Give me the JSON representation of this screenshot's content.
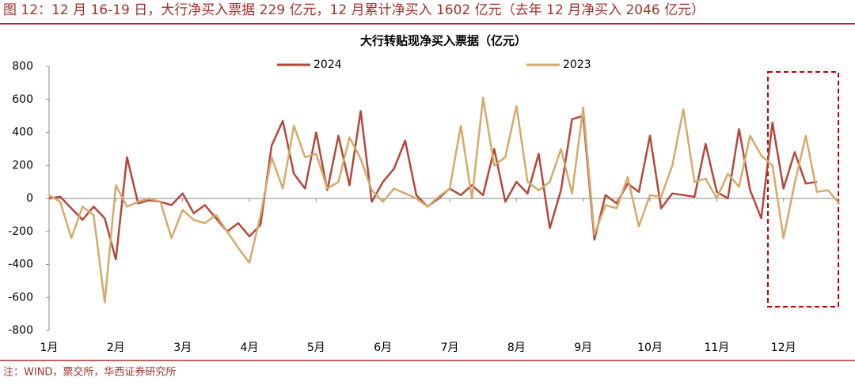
{
  "header": {
    "title": "图 12：12 月 16-19 日，大行净买入票据 229 亿元，12 月累计净买入 1602 亿元（去年 12 月净买入 2046 亿元）"
  },
  "footer": {
    "source": "注：WIND，票交所，华西证券研究所"
  },
  "chart_data": {
    "type": "line",
    "title": "大行转贴现净买入票据（亿元）",
    "categories": [
      "1月",
      null,
      null,
      null,
      null,
      null,
      "2月",
      null,
      null,
      null,
      null,
      null,
      "3月",
      null,
      null,
      null,
      null,
      null,
      "4月",
      null,
      null,
      null,
      null,
      null,
      "5月",
      null,
      null,
      null,
      null,
      null,
      "6月",
      null,
      null,
      null,
      null,
      null,
      "7月",
      null,
      null,
      null,
      null,
      null,
      "8月",
      null,
      null,
      null,
      null,
      null,
      "9月",
      null,
      null,
      null,
      null,
      null,
      "10月",
      null,
      null,
      null,
      null,
      null,
      "11月",
      null,
      null,
      null,
      null,
      null,
      "12月",
      null,
      null,
      null,
      null,
      null
    ],
    "series": [
      {
        "name": "2024",
        "color": "#b5473a",
        "values": [
          0,
          10,
          -60,
          -130,
          -50,
          -120,
          -370,
          250,
          -30,
          -10,
          -20,
          -40,
          30,
          -90,
          -40,
          -120,
          -200,
          -150,
          -230,
          -160,
          320,
          470,
          150,
          60,
          400,
          50,
          380,
          80,
          530,
          -20,
          100,
          180,
          350,
          20,
          -50,
          0,
          60,
          20,
          80,
          20,
          300,
          -20,
          100,
          30,
          270,
          -180,
          50,
          480,
          500,
          -250,
          20,
          -30,
          90,
          40,
          380,
          -60,
          30,
          20,
          10,
          330,
          40,
          0,
          420,
          50,
          -120,
          460,
          60,
          280,
          90,
          100,
          null,
          null
        ]
      },
      {
        "name": "2023",
        "color": "#d4aa6a",
        "values": [
          20,
          -20,
          -240,
          -50,
          -100,
          -630,
          80,
          -50,
          -20,
          0,
          -20,
          -240,
          -70,
          -130,
          -150,
          -100,
          -200,
          -300,
          -390,
          -100,
          250,
          60,
          440,
          250,
          270,
          60,
          100,
          370,
          240,
          50,
          -20,
          60,
          30,
          0,
          -50,
          10,
          60,
          440,
          0,
          610,
          200,
          250,
          560,
          100,
          50,
          100,
          300,
          30,
          550,
          -220,
          -40,
          -60,
          130,
          -170,
          20,
          10,
          200,
          540,
          100,
          120,
          0,
          150,
          70,
          380,
          260,
          200,
          -240,
          90,
          380,
          40,
          50,
          -30
        ]
      }
    ],
    "ylim": [
      -800,
      800
    ],
    "yticks": [
      -800,
      -600,
      -400,
      -200,
      0,
      200,
      400,
      600,
      800
    ],
    "legend": "top",
    "grid": false
  }
}
